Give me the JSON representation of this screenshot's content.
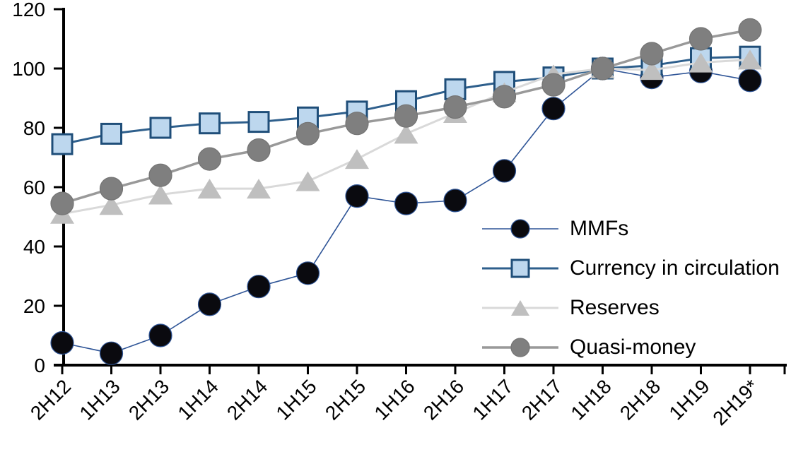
{
  "chart_data": {
    "type": "line",
    "title": "",
    "categories": [
      "2H12",
      "1H13",
      "2H13",
      "1H14",
      "2H14",
      "1H15",
      "2H15",
      "1H16",
      "2H16",
      "1H17",
      "2H17",
      "1H18",
      "2H18",
      "1H19",
      "2H19*"
    ],
    "series": [
      {
        "name": "MMFs",
        "marker": "circle",
        "marker_fill": "#0a0a0f",
        "marker_stroke": "#2F5597",
        "line_color": "#2F5597",
        "line_width": 1.6,
        "values": [
          7.5,
          4,
          10,
          20.5,
          26.5,
          31,
          57,
          54.5,
          55.5,
          65.5,
          86.5,
          100,
          97,
          99,
          96
        ]
      },
      {
        "name": "Currency in circulation",
        "marker": "square",
        "marker_fill": "#BDD7EE",
        "marker_stroke": "#1F4E79",
        "line_color": "#2E5F8C",
        "line_width": 3,
        "values": [
          74.5,
          78,
          80,
          81.5,
          82,
          83.5,
          85.5,
          89,
          93,
          95.5,
          97,
          100,
          101,
          103.5,
          104
        ]
      },
      {
        "name": "Reserves",
        "marker": "triangle",
        "marker_fill": "#BFBFBF",
        "marker_stroke": "#BFBFBF",
        "line_color": "#D9D9D9",
        "line_width": 3,
        "values": [
          51,
          54,
          57.5,
          59.5,
          59.5,
          62,
          69.5,
          78,
          85,
          92,
          98,
          100,
          99.5,
          102,
          103
        ]
      },
      {
        "name": "Quasi-money",
        "marker": "circle",
        "marker_fill": "#7F7F7F",
        "marker_stroke": "#747474",
        "line_color": "#999999",
        "line_width": 3.5,
        "values": [
          54.5,
          59.5,
          64,
          69.5,
          72.5,
          78,
          81.5,
          84,
          87,
          90.5,
          94.5,
          100,
          105,
          110,
          113
        ]
      }
    ],
    "xlabel": "",
    "ylabel": "",
    "ylim": [
      0,
      120
    ],
    "ytick_interval": 20,
    "ytick_labels": [
      "0",
      "20",
      "40",
      "60",
      "80",
      "100",
      "120"
    ],
    "grid": false,
    "legend_position": "inside-right",
    "axis_color": "#000000",
    "background_color": "#ffffff"
  },
  "legend": {
    "items": [
      {
        "label": "MMFs"
      },
      {
        "label": "Currency in circulation"
      },
      {
        "label": "Reserves"
      },
      {
        "label": "Quasi-money"
      }
    ]
  }
}
